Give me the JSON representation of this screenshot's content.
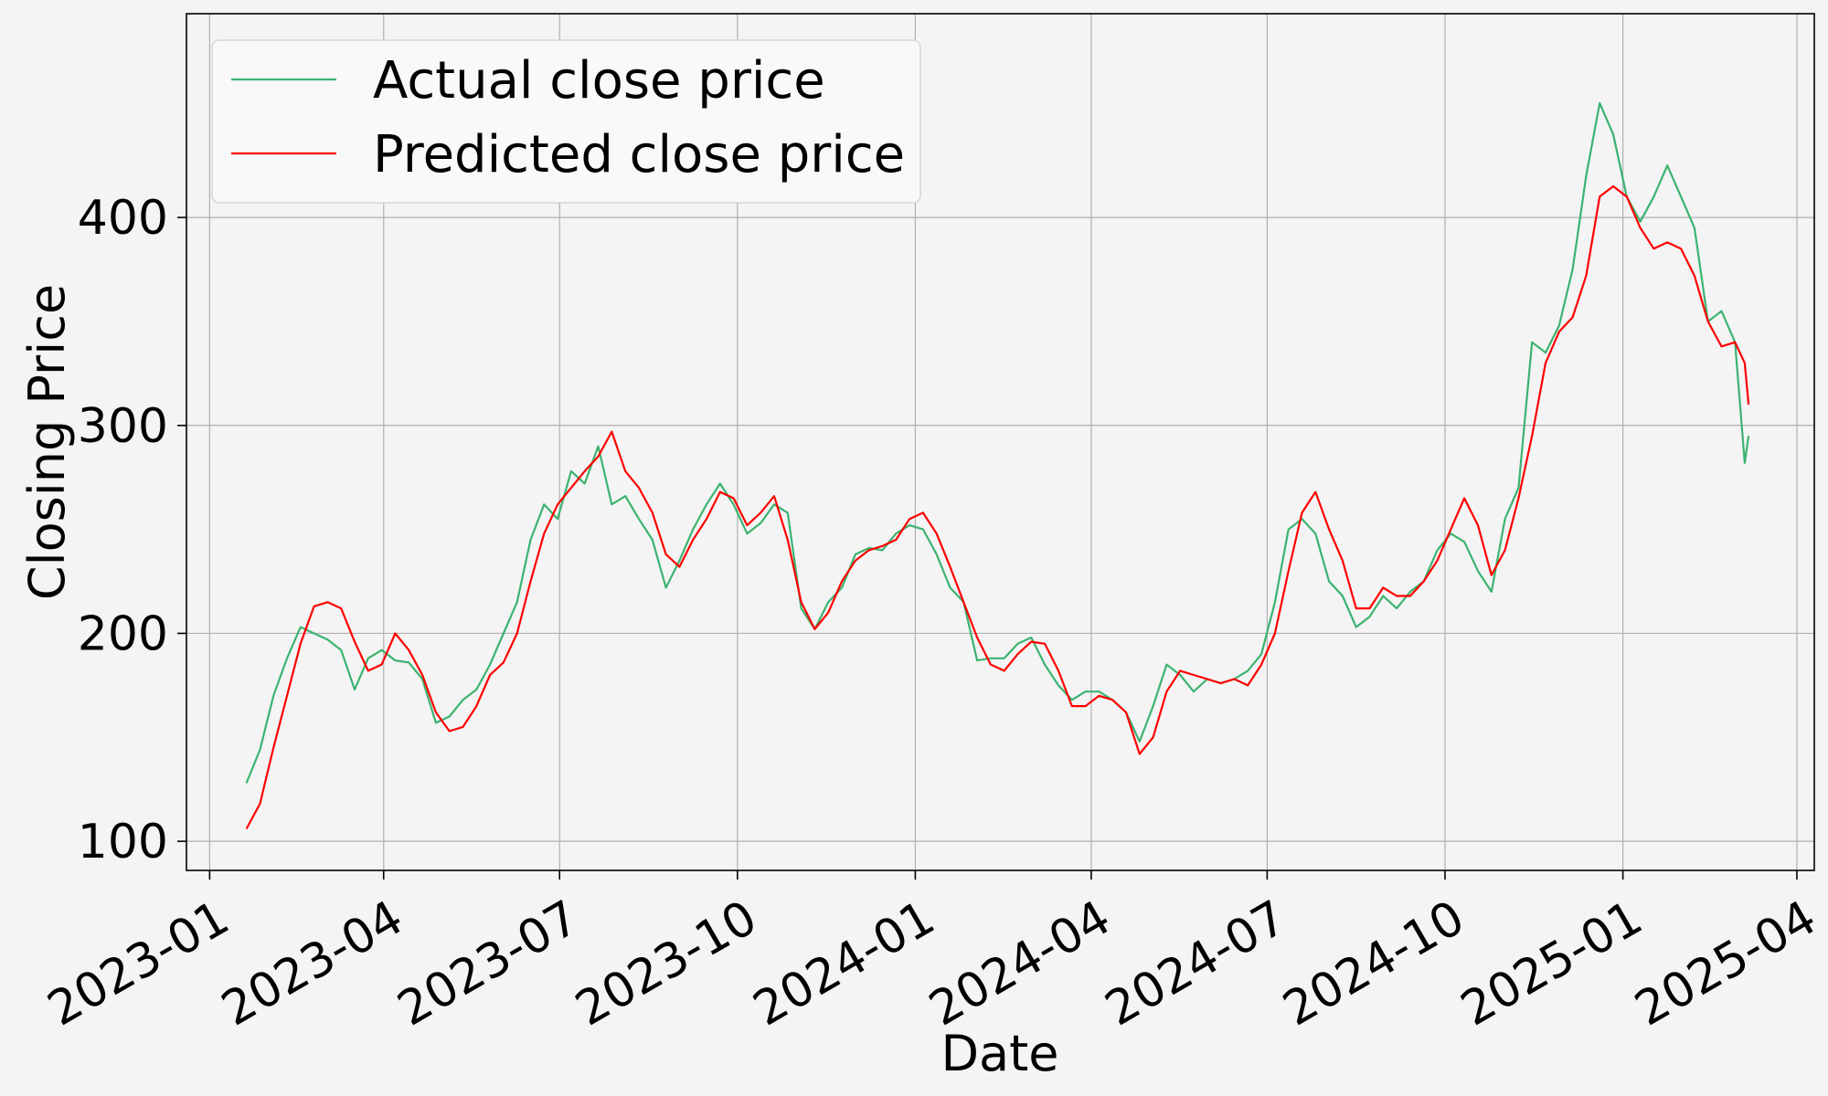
{
  "chart_data": {
    "type": "line",
    "title": "",
    "xlabel": "Date",
    "ylabel": "Closing Price",
    "x_axis_type": "date",
    "xlim": [
      "2022-12-20",
      "2025-04-10"
    ],
    "ylim": [
      86,
      498
    ],
    "x_ticks": [
      "2023-01-01",
      "2023-04-01",
      "2023-07-01",
      "2023-10-01",
      "2024-01-01",
      "2024-04-01",
      "2024-07-01",
      "2024-10-01",
      "2025-01-01",
      "2025-04-01"
    ],
    "x_tick_labels": [
      "2023-01",
      "2023-04",
      "2023-07",
      "2023-10",
      "2024-01",
      "2024-04",
      "2024-07",
      "2024-10",
      "2025-01",
      "2025-04"
    ],
    "y_ticks": [
      100,
      200,
      300,
      400
    ],
    "y_tick_labels": [
      "100",
      "200",
      "300",
      "400"
    ],
    "grid": true,
    "legend_position": "top-left",
    "colors": {
      "background": "#f4f4f4",
      "plot_background": "#f4f4f4",
      "grid": "#b0b0b0",
      "actual": "#3cb371",
      "predicted": "#ff0000"
    },
    "series": [
      {
        "name": "Actual close price",
        "color": "#3cb371",
        "points": [
          [
            "2023-01-20",
            128
          ],
          [
            "2023-01-27",
            144
          ],
          [
            "2023-02-03",
            170
          ],
          [
            "2023-02-10",
            188
          ],
          [
            "2023-02-17",
            203
          ],
          [
            "2023-02-24",
            200
          ],
          [
            "2023-03-03",
            197
          ],
          [
            "2023-03-10",
            192
          ],
          [
            "2023-03-17",
            173
          ],
          [
            "2023-03-24",
            188
          ],
          [
            "2023-03-31",
            192
          ],
          [
            "2023-04-07",
            187
          ],
          [
            "2023-04-14",
            186
          ],
          [
            "2023-04-21",
            178
          ],
          [
            "2023-04-28",
            157
          ],
          [
            "2023-05-05",
            160
          ],
          [
            "2023-05-12",
            168
          ],
          [
            "2023-05-19",
            173
          ],
          [
            "2023-05-26",
            185
          ],
          [
            "2023-06-02",
            200
          ],
          [
            "2023-06-09",
            215
          ],
          [
            "2023-06-16",
            245
          ],
          [
            "2023-06-23",
            262
          ],
          [
            "2023-06-30",
            255
          ],
          [
            "2023-07-07",
            278
          ],
          [
            "2023-07-14",
            272
          ],
          [
            "2023-07-21",
            290
          ],
          [
            "2023-07-28",
            262
          ],
          [
            "2023-08-04",
            266
          ],
          [
            "2023-08-11",
            255
          ],
          [
            "2023-08-18",
            245
          ],
          [
            "2023-08-25",
            222
          ],
          [
            "2023-09-01",
            235
          ],
          [
            "2023-09-08",
            250
          ],
          [
            "2023-09-15",
            262
          ],
          [
            "2023-09-22",
            272
          ],
          [
            "2023-09-29",
            262
          ],
          [
            "2023-10-06",
            248
          ],
          [
            "2023-10-13",
            253
          ],
          [
            "2023-10-20",
            262
          ],
          [
            "2023-10-27",
            258
          ],
          [
            "2023-11-03",
            212
          ],
          [
            "2023-11-10",
            202
          ],
          [
            "2023-11-17",
            215
          ],
          [
            "2023-11-24",
            222
          ],
          [
            "2023-12-01",
            238
          ],
          [
            "2023-12-08",
            241
          ],
          [
            "2023-12-15",
            240
          ],
          [
            "2023-12-22",
            248
          ],
          [
            "2023-12-29",
            252
          ],
          [
            "2024-01-05",
            250
          ],
          [
            "2024-01-12",
            238
          ],
          [
            "2024-01-19",
            222
          ],
          [
            "2024-01-26",
            215
          ],
          [
            "2024-02-02",
            187
          ],
          [
            "2024-02-09",
            188
          ],
          [
            "2024-02-16",
            188
          ],
          [
            "2024-02-23",
            195
          ],
          [
            "2024-03-01",
            198
          ],
          [
            "2024-03-08",
            185
          ],
          [
            "2024-03-15",
            175
          ],
          [
            "2024-03-22",
            168
          ],
          [
            "2024-03-29",
            172
          ],
          [
            "2024-04-05",
            172
          ],
          [
            "2024-04-12",
            168
          ],
          [
            "2024-04-19",
            162
          ],
          [
            "2024-04-26",
            148
          ],
          [
            "2024-05-03",
            165
          ],
          [
            "2024-05-10",
            185
          ],
          [
            "2024-05-17",
            180
          ],
          [
            "2024-05-24",
            172
          ],
          [
            "2024-05-31",
            178
          ],
          [
            "2024-06-07",
            176
          ],
          [
            "2024-06-14",
            178
          ],
          [
            "2024-06-21",
            182
          ],
          [
            "2024-06-28",
            190
          ],
          [
            "2024-07-05",
            215
          ],
          [
            "2024-07-12",
            250
          ],
          [
            "2024-07-19",
            255
          ],
          [
            "2024-07-26",
            248
          ],
          [
            "2024-08-02",
            225
          ],
          [
            "2024-08-09",
            218
          ],
          [
            "2024-08-16",
            203
          ],
          [
            "2024-08-23",
            208
          ],
          [
            "2024-08-30",
            218
          ],
          [
            "2024-09-06",
            212
          ],
          [
            "2024-09-13",
            220
          ],
          [
            "2024-09-20",
            225
          ],
          [
            "2024-09-27",
            240
          ],
          [
            "2024-10-04",
            248
          ],
          [
            "2024-10-11",
            244
          ],
          [
            "2024-10-18",
            230
          ],
          [
            "2024-10-25",
            220
          ],
          [
            "2024-11-01",
            255
          ],
          [
            "2024-11-08",
            270
          ],
          [
            "2024-11-15",
            340
          ],
          [
            "2024-11-22",
            335
          ],
          [
            "2024-11-29",
            348
          ],
          [
            "2024-12-06",
            375
          ],
          [
            "2024-12-13",
            420
          ],
          [
            "2024-12-20",
            455
          ],
          [
            "2024-12-27",
            440
          ],
          [
            "2025-01-03",
            410
          ],
          [
            "2025-01-10",
            398
          ],
          [
            "2025-01-17",
            410
          ],
          [
            "2025-01-24",
            425
          ],
          [
            "2025-01-31",
            410
          ],
          [
            "2025-02-07",
            395
          ],
          [
            "2025-02-14",
            350
          ],
          [
            "2025-02-21",
            355
          ],
          [
            "2025-02-28",
            340
          ],
          [
            "2025-03-05",
            282
          ],
          [
            "2025-03-07",
            295
          ]
        ]
      },
      {
        "name": "Predicted close price",
        "color": "#ff0000",
        "points": [
          [
            "2023-01-20",
            106
          ],
          [
            "2023-01-27",
            118
          ],
          [
            "2023-02-03",
            145
          ],
          [
            "2023-02-10",
            170
          ],
          [
            "2023-02-17",
            195
          ],
          [
            "2023-02-24",
            213
          ],
          [
            "2023-03-03",
            215
          ],
          [
            "2023-03-10",
            212
          ],
          [
            "2023-03-17",
            196
          ],
          [
            "2023-03-24",
            182
          ],
          [
            "2023-03-31",
            185
          ],
          [
            "2023-04-07",
            200
          ],
          [
            "2023-04-14",
            192
          ],
          [
            "2023-04-21",
            180
          ],
          [
            "2023-04-28",
            162
          ],
          [
            "2023-05-05",
            153
          ],
          [
            "2023-05-12",
            155
          ],
          [
            "2023-05-19",
            165
          ],
          [
            "2023-05-26",
            180
          ],
          [
            "2023-06-02",
            186
          ],
          [
            "2023-06-09",
            200
          ],
          [
            "2023-06-16",
            225
          ],
          [
            "2023-06-23",
            248
          ],
          [
            "2023-06-30",
            262
          ],
          [
            "2023-07-07",
            270
          ],
          [
            "2023-07-14",
            278
          ],
          [
            "2023-07-21",
            285
          ],
          [
            "2023-07-28",
            297
          ],
          [
            "2023-08-04",
            278
          ],
          [
            "2023-08-11",
            270
          ],
          [
            "2023-08-18",
            258
          ],
          [
            "2023-08-25",
            238
          ],
          [
            "2023-09-01",
            232
          ],
          [
            "2023-09-08",
            245
          ],
          [
            "2023-09-15",
            255
          ],
          [
            "2023-09-22",
            268
          ],
          [
            "2023-09-29",
            265
          ],
          [
            "2023-10-06",
            252
          ],
          [
            "2023-10-13",
            258
          ],
          [
            "2023-10-20",
            266
          ],
          [
            "2023-10-27",
            245
          ],
          [
            "2023-11-03",
            215
          ],
          [
            "2023-11-10",
            202
          ],
          [
            "2023-11-17",
            210
          ],
          [
            "2023-11-24",
            225
          ],
          [
            "2023-12-01",
            235
          ],
          [
            "2023-12-08",
            240
          ],
          [
            "2023-12-15",
            242
          ],
          [
            "2023-12-22",
            245
          ],
          [
            "2023-12-29",
            255
          ],
          [
            "2024-01-05",
            258
          ],
          [
            "2024-01-12",
            248
          ],
          [
            "2024-01-19",
            232
          ],
          [
            "2024-01-26",
            215
          ],
          [
            "2024-02-02",
            198
          ],
          [
            "2024-02-09",
            185
          ],
          [
            "2024-02-16",
            182
          ],
          [
            "2024-02-23",
            190
          ],
          [
            "2024-03-01",
            196
          ],
          [
            "2024-03-08",
            195
          ],
          [
            "2024-03-15",
            182
          ],
          [
            "2024-03-22",
            165
          ],
          [
            "2024-03-29",
            165
          ],
          [
            "2024-04-05",
            170
          ],
          [
            "2024-04-12",
            168
          ],
          [
            "2024-04-19",
            162
          ],
          [
            "2024-04-26",
            142
          ],
          [
            "2024-05-03",
            150
          ],
          [
            "2024-05-10",
            172
          ],
          [
            "2024-05-17",
            182
          ],
          [
            "2024-05-24",
            180
          ],
          [
            "2024-05-31",
            178
          ],
          [
            "2024-06-07",
            176
          ],
          [
            "2024-06-14",
            178
          ],
          [
            "2024-06-21",
            175
          ],
          [
            "2024-06-28",
            185
          ],
          [
            "2024-07-05",
            200
          ],
          [
            "2024-07-12",
            230
          ],
          [
            "2024-07-19",
            258
          ],
          [
            "2024-07-26",
            268
          ],
          [
            "2024-08-02",
            250
          ],
          [
            "2024-08-09",
            235
          ],
          [
            "2024-08-16",
            212
          ],
          [
            "2024-08-23",
            212
          ],
          [
            "2024-08-30",
            222
          ],
          [
            "2024-09-06",
            218
          ],
          [
            "2024-09-13",
            218
          ],
          [
            "2024-09-20",
            225
          ],
          [
            "2024-09-27",
            235
          ],
          [
            "2024-10-04",
            250
          ],
          [
            "2024-10-11",
            265
          ],
          [
            "2024-10-18",
            252
          ],
          [
            "2024-10-25",
            228
          ],
          [
            "2024-11-01",
            240
          ],
          [
            "2024-11-08",
            265
          ],
          [
            "2024-11-15",
            295
          ],
          [
            "2024-11-22",
            330
          ],
          [
            "2024-11-29",
            345
          ],
          [
            "2024-12-06",
            352
          ],
          [
            "2024-12-13",
            372
          ],
          [
            "2024-12-20",
            410
          ],
          [
            "2024-12-27",
            415
          ],
          [
            "2025-01-03",
            410
          ],
          [
            "2025-01-10",
            395
          ],
          [
            "2025-01-17",
            385
          ],
          [
            "2025-01-24",
            388
          ],
          [
            "2025-01-31",
            385
          ],
          [
            "2025-02-07",
            372
          ],
          [
            "2025-02-14",
            350
          ],
          [
            "2025-02-21",
            338
          ],
          [
            "2025-02-28",
            340
          ],
          [
            "2025-03-05",
            330
          ],
          [
            "2025-03-07",
            310
          ]
        ]
      }
    ]
  }
}
